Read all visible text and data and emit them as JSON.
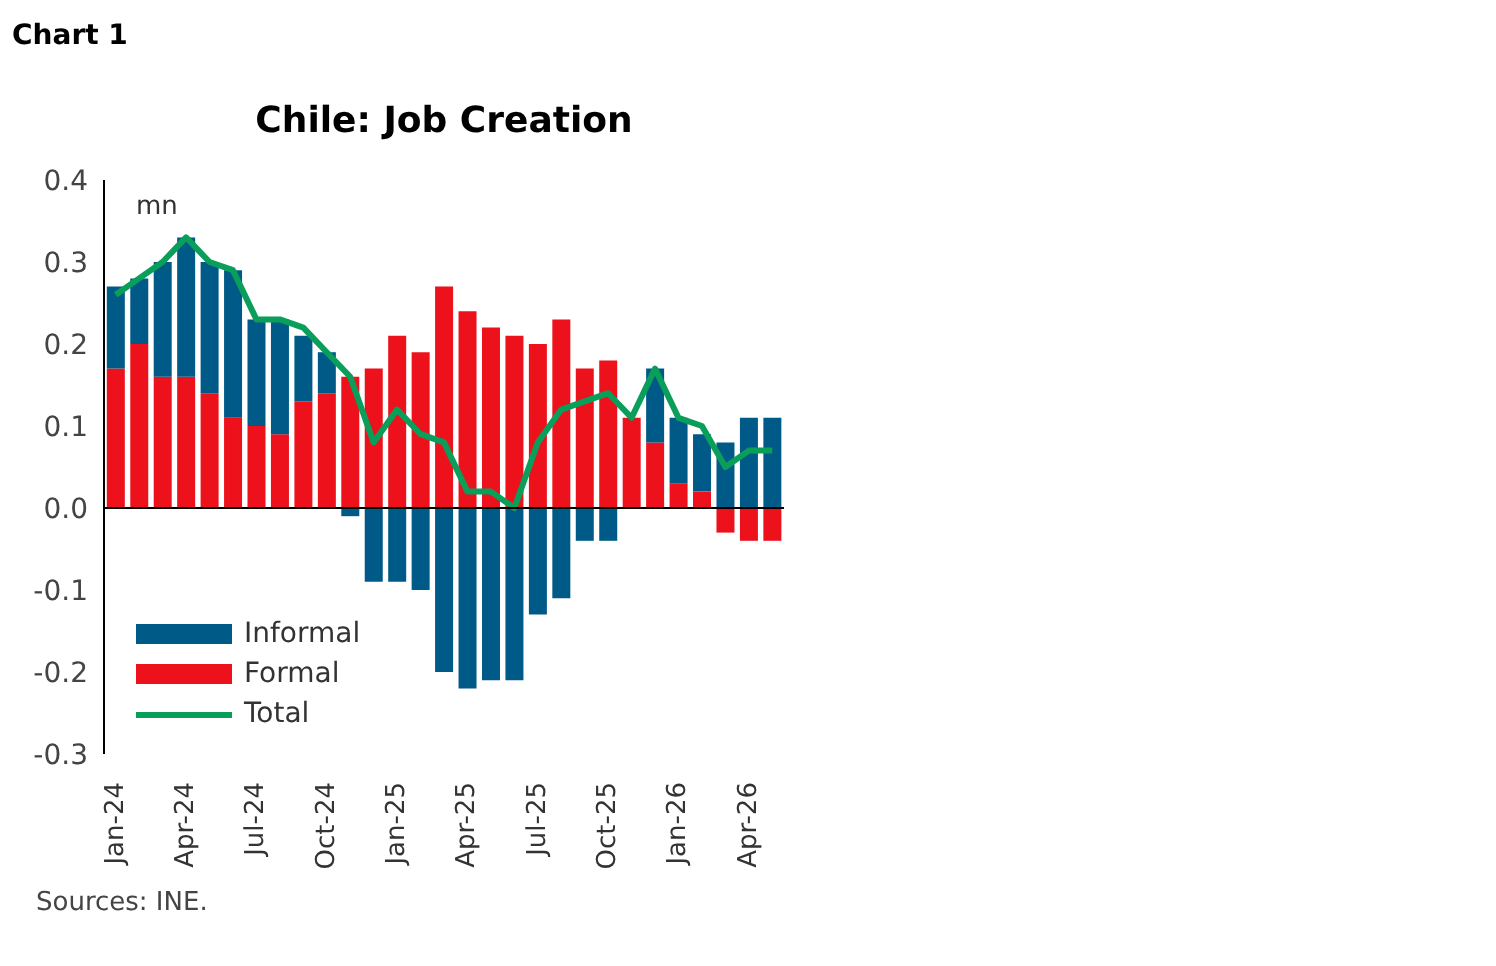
{
  "chart_data": {
    "type": "bar",
    "title": "Chile: Job Creation",
    "stacked": true,
    "categories": [
      "Jan-24",
      null,
      null,
      "Apr-24",
      null,
      null,
      "Jul-24",
      null,
      null,
      "Oct-24",
      null,
      null,
      "Jan-25",
      null,
      null,
      "Apr-25",
      null,
      null,
      "Jul-25",
      null,
      null,
      "Oct-25",
      null,
      null,
      "Jan-26",
      null,
      null,
      "Apr-26",
      null
    ],
    "series": [
      {
        "name": "Formal",
        "color": "#ec111a",
        "values": [
          0.17,
          0.2,
          0.16,
          0.16,
          0.14,
          0.11,
          0.1,
          0.09,
          0.13,
          0.14,
          0.16,
          0.17,
          0.21,
          0.19,
          0.27,
          0.24,
          0.22,
          0.21,
          0.2,
          0.23,
          0.17,
          0.18,
          0.11,
          0.08,
          0.03,
          0.02,
          -0.03,
          -0.04,
          -0.04
        ]
      },
      {
        "name": "Informal",
        "color": "#005a87",
        "values": [
          0.1,
          0.08,
          0.14,
          0.17,
          0.16,
          0.18,
          0.13,
          0.14,
          0.08,
          0.05,
          -0.01,
          -0.09,
          -0.09,
          -0.1,
          -0.2,
          -0.22,
          -0.21,
          -0.21,
          -0.13,
          -0.11,
          -0.04,
          -0.04,
          0,
          0.09,
          0.08,
          0.07,
          0.08,
          0.11,
          0.11
        ]
      },
      {
        "name": "Total",
        "type": "line",
        "color": "#0a9e5b",
        "values": [
          0.26,
          0.28,
          0.3,
          0.33,
          0.3,
          0.29,
          0.23,
          0.23,
          0.22,
          0.19,
          0.16,
          0.08,
          0.12,
          0.09,
          0.08,
          0.02,
          0.02,
          0.0,
          0.08,
          0.12,
          0.13,
          0.14,
          0.11,
          0.17,
          0.11,
          0.1,
          0.05,
          0.07,
          0.07
        ]
      }
    ],
    "ylim": [
      -0.3,
      0.4
    ],
    "yticks": [
      -0.3,
      -0.2,
      -0.1,
      {
        "value": 0,
        "label": "0.0"
      },
      0.1,
      0.2,
      0.3,
      0.4
    ],
    "ref_lines": [
      {
        "axis": "y",
        "value": 0,
        "color": "#000000"
      }
    ],
    "legend": "bottom left",
    "grid": false,
    "annotations": [
      "Chart 1",
      "mn",
      "Sources: INE."
    ]
  }
}
